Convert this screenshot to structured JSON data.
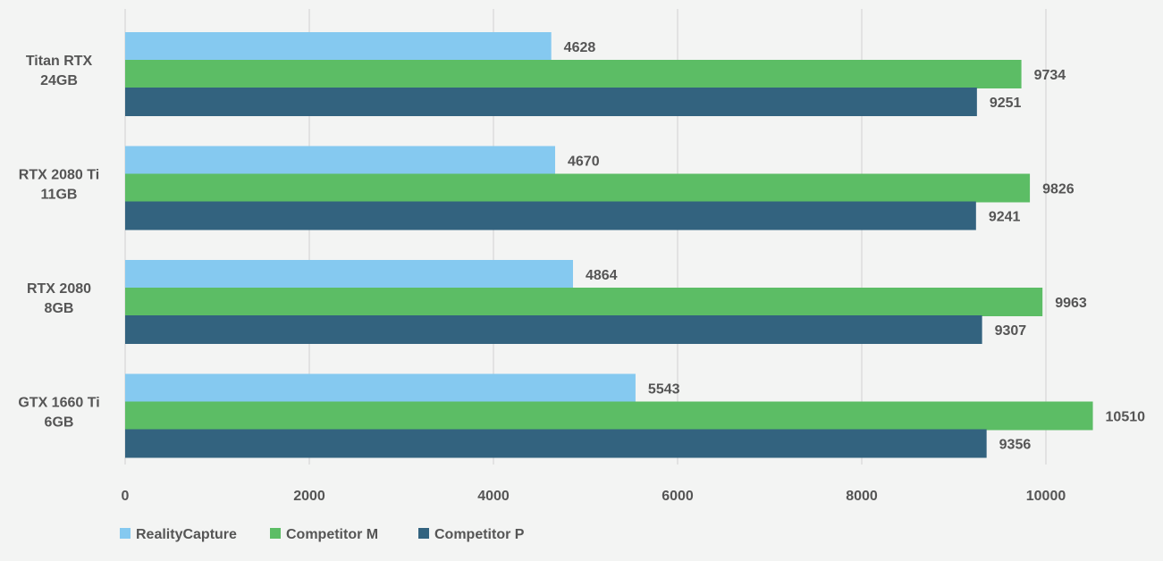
{
  "chart_data": {
    "type": "bar",
    "orientation": "horizontal",
    "categories": [
      [
        "Titan RTX",
        "24GB"
      ],
      [
        "RTX 2080 Ti",
        "11GB"
      ],
      [
        "RTX 2080",
        "8GB"
      ],
      [
        "GTX 1660 Ti",
        "6GB"
      ]
    ],
    "series": [
      {
        "name": "RealityCapture",
        "color": "#85c9f0",
        "values": [
          4628,
          4670,
          4864,
          5543
        ]
      },
      {
        "name": "Competitor M",
        "color": "#5cbd65",
        "values": [
          9734,
          9826,
          9963,
          10510
        ]
      },
      {
        "name": "Competitor P",
        "color": "#33637f",
        "values": [
          9251,
          9241,
          9307,
          9356
        ]
      }
    ],
    "xlim": [
      0,
      10000
    ],
    "xticks": [
      0,
      2000,
      4000,
      6000,
      8000,
      10000
    ],
    "grid": true,
    "legend_position": "bottom-left",
    "data_labels": true
  }
}
